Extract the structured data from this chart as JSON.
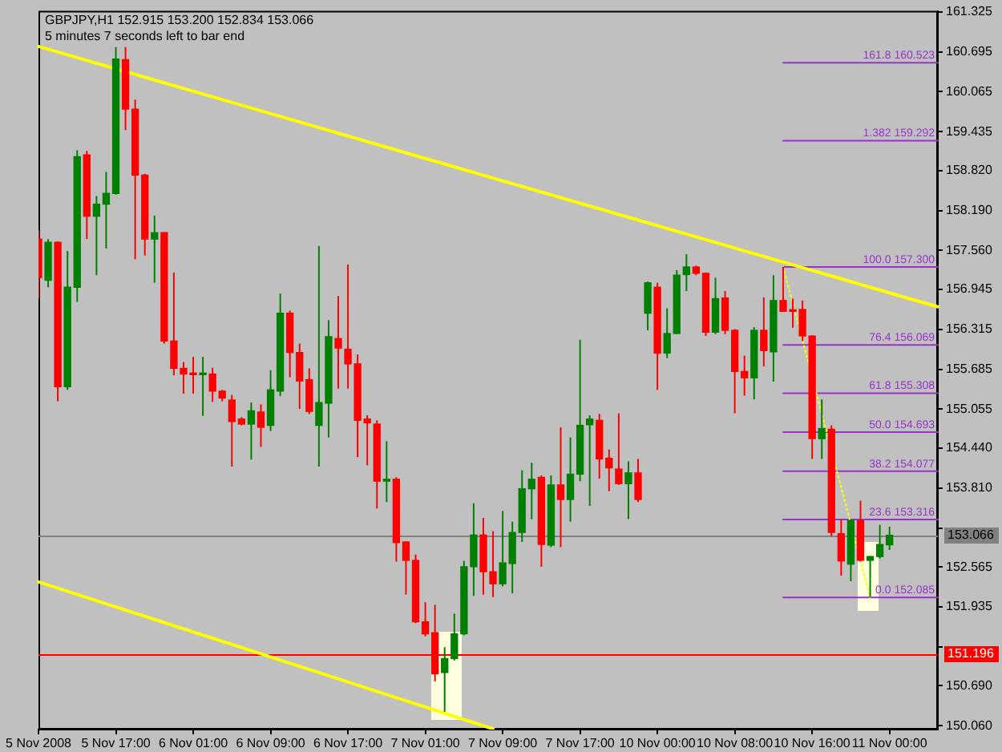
{
  "chart_data": {
    "type": "candlestick",
    "title": "GBPJPY,H1 152.915 153.200 152.834 153.066",
    "subtitle": "5 minutes 7 seconds left to bar end",
    "categories": [
      "5 Nov 2008",
      null,
      null,
      null,
      null,
      null,
      null,
      null,
      "5 Nov 17:00",
      null,
      null,
      null,
      null,
      null,
      null,
      null,
      "6 Nov 01:00",
      null,
      null,
      null,
      null,
      null,
      null,
      null,
      "6 Nov 09:00",
      null,
      null,
      null,
      null,
      null,
      null,
      null,
      "6 Nov 17:00",
      null,
      null,
      null,
      null,
      null,
      null,
      null,
      "7 Nov 01:00",
      null,
      null,
      null,
      null,
      null,
      null,
      null,
      "7 Nov 09:00",
      null,
      null,
      null,
      null,
      null,
      null,
      null,
      "7 Nov 17:00",
      null,
      null,
      null,
      null,
      null,
      null,
      null,
      "10 Nov 00:00",
      null,
      null,
      null,
      null,
      null,
      null,
      null,
      "10 Nov 08:00",
      null,
      null,
      null,
      null,
      null,
      null,
      null,
      "10 Nov 16:00",
      null,
      null,
      null,
      null,
      null,
      null,
      null,
      "11 Nov 00:00",
      null,
      null,
      null,
      null,
      null
    ],
    "ohlc": [
      [
        157.74,
        157.88,
        156.8,
        157.13
      ],
      [
        157.09,
        157.74,
        156.98,
        157.69
      ],
      [
        157.69,
        157.7,
        155.18,
        155.41
      ],
      [
        155.41,
        157.55,
        155.36,
        156.98
      ],
      [
        156.98,
        159.14,
        156.75,
        159.04
      ],
      [
        159.07,
        159.13,
        157.74,
        158.1
      ],
      [
        158.1,
        158.42,
        157.17,
        158.29
      ],
      [
        158.29,
        158.8,
        157.59,
        158.46
      ],
      [
        158.46,
        160.77,
        158.44,
        160.58
      ],
      [
        160.57,
        160.77,
        159.46,
        159.79
      ],
      [
        159.79,
        159.94,
        157.42,
        158.75
      ],
      [
        158.75,
        158.77,
        157.48,
        157.74
      ],
      [
        157.74,
        158.11,
        157.05,
        157.84
      ],
      [
        157.84,
        157.85,
        156.09,
        156.13
      ],
      [
        156.13,
        157.21,
        155.59,
        155.7
      ],
      [
        155.7,
        155.8,
        155.3,
        155.61
      ],
      [
        155.61,
        155.88,
        155.3,
        155.6
      ],
      [
        155.6,
        155.88,
        154.95,
        155.61
      ],
      [
        155.61,
        155.71,
        155.17,
        155.34
      ],
      [
        155.34,
        155.36,
        155.18,
        155.23
      ],
      [
        155.2,
        155.28,
        154.15,
        154.86
      ],
      [
        154.9,
        154.93,
        154.8,
        154.82
      ],
      [
        154.82,
        155.16,
        154.26,
        155.03
      ],
      [
        155.01,
        155.13,
        154.46,
        154.77
      ],
      [
        154.8,
        155.67,
        154.71,
        155.36
      ],
      [
        155.34,
        156.88,
        155.26,
        156.57
      ],
      [
        156.57,
        156.61,
        155.56,
        155.95
      ],
      [
        155.95,
        156.09,
        155.06,
        155.5
      ],
      [
        155.52,
        155.7,
        154.98,
        155.02
      ],
      [
        154.8,
        157.63,
        154.15,
        155.16
      ],
      [
        155.15,
        156.46,
        154.61,
        156.2
      ],
      [
        156.17,
        156.84,
        155.38,
        156.02
      ],
      [
        156.0,
        157.34,
        155.38,
        155.77
      ],
      [
        155.77,
        155.92,
        154.3,
        154.88
      ],
      [
        154.9,
        154.96,
        154.17,
        154.84
      ],
      [
        154.82,
        154.88,
        153.49,
        153.92
      ],
      [
        153.92,
        154.55,
        153.59,
        153.95
      ],
      [
        153.95,
        153.98,
        152.65,
        152.95
      ],
      [
        152.96,
        152.97,
        152.13,
        152.67
      ],
      [
        152.67,
        152.76,
        151.68,
        151.7
      ],
      [
        151.7,
        152.01,
        151.47,
        151.51
      ],
      [
        151.53,
        151.97,
        150.76,
        150.88
      ],
      [
        150.9,
        151.3,
        150.28,
        151.12
      ],
      [
        151.12,
        151.83,
        151.09,
        151.51
      ],
      [
        151.51,
        152.66,
        151.49,
        152.57
      ],
      [
        152.57,
        153.57,
        152.11,
        153.07
      ],
      [
        153.07,
        153.34,
        152.13,
        152.49
      ],
      [
        152.49,
        153.13,
        152.09,
        152.3
      ],
      [
        152.3,
        153.45,
        152.26,
        152.63
      ],
      [
        152.62,
        153.28,
        152.15,
        153.11
      ],
      [
        153.11,
        154.09,
        152.96,
        153.8
      ],
      [
        153.8,
        154.21,
        153.32,
        153.95
      ],
      [
        153.98,
        154.01,
        152.57,
        152.92
      ],
      [
        152.91,
        154.01,
        152.88,
        153.86
      ],
      [
        153.86,
        154.77,
        152.88,
        153.63
      ],
      [
        153.63,
        154.61,
        153.28,
        154.03
      ],
      [
        154.03,
        156.15,
        153.92,
        154.8
      ],
      [
        154.81,
        154.96,
        153.53,
        154.9
      ],
      [
        154.88,
        154.98,
        153.96,
        154.27
      ],
      [
        154.28,
        154.42,
        153.76,
        154.13
      ],
      [
        154.11,
        154.99,
        153.86,
        153.88
      ],
      [
        153.88,
        154.23,
        153.32,
        154.05
      ],
      [
        154.05,
        154.27,
        153.59,
        153.63
      ],
      [
        156.57,
        157.07,
        156.3,
        157.05
      ],
      [
        156.98,
        157.05,
        155.36,
        155.94
      ],
      [
        155.94,
        156.65,
        155.86,
        156.25
      ],
      [
        156.25,
        157.25,
        156.24,
        157.17
      ],
      [
        157.18,
        157.5,
        156.92,
        157.3
      ],
      [
        157.3,
        157.32,
        157.17,
        157.2
      ],
      [
        157.2,
        157.21,
        156.21,
        156.27
      ],
      [
        156.27,
        157.13,
        156.24,
        156.8
      ],
      [
        156.81,
        156.92,
        156.24,
        156.3
      ],
      [
        156.3,
        156.32,
        154.99,
        155.65
      ],
      [
        155.65,
        155.9,
        155.27,
        155.55
      ],
      [
        155.55,
        156.35,
        155.21,
        156.3
      ],
      [
        156.3,
        156.82,
        155.73,
        155.98
      ],
      [
        155.96,
        157.17,
        155.49,
        156.77
      ],
      [
        156.77,
        157.3,
        156.59,
        156.6
      ],
      [
        156.61,
        156.8,
        156.34,
        156.6
      ],
      [
        156.63,
        156.77,
        156.13,
        156.21
      ],
      [
        156.21,
        156.22,
        154.27,
        154.59
      ],
      [
        154.59,
        155.21,
        154.27,
        154.75
      ],
      [
        154.74,
        154.8,
        153.05,
        153.11
      ],
      [
        153.09,
        153.31,
        152.43,
        152.66
      ],
      [
        152.61,
        153.31,
        152.34,
        153.3
      ],
      [
        153.3,
        153.61,
        152.65,
        152.67
      ],
      [
        152.67,
        152.74,
        152.085,
        152.73
      ],
      [
        152.73,
        153.23,
        152.7,
        152.92
      ],
      [
        152.915,
        153.2,
        152.834,
        153.066
      ],
      null,
      null,
      null,
      null,
      null
    ],
    "colors": [
      "#ff0000",
      "#008000",
      "#ff0000",
      "#008000",
      "#008000",
      "#ff0000",
      "#008000",
      "#008000",
      "#008000",
      "#ff0000",
      "#ff0000",
      "#ff0000",
      "#008000",
      "#ff0000",
      "#ff0000",
      "#ff0000",
      "#ff0000",
      "#008000",
      "#ff0000",
      "#ff0000",
      "#ff0000",
      "#ff0000",
      "#008000",
      "#ff0000",
      "#008000",
      "#008000",
      "#ff0000",
      "#ff0000",
      "#ff0000",
      "#008000",
      "#008000",
      "#ff0000",
      "#ff0000",
      "#ff0000",
      "#ff0000",
      "#ff0000",
      "#008000",
      "#ff0000",
      "#ff0000",
      "#ff0000",
      "#ff0000",
      "#ff0000",
      "#008000",
      "#008000",
      "#008000",
      "#008000",
      "#ff0000",
      "#ff0000",
      "#008000",
      "#008000",
      "#008000",
      "#008000",
      "#ff0000",
      "#008000",
      "#ff0000",
      "#008000",
      "#008000",
      "#008000",
      "#ff0000",
      "#ff0000",
      "#ff0000",
      "#008000",
      "#ff0000",
      "#008000",
      "#ff0000",
      "#008000",
      "#008000",
      "#008000",
      "#ff0000",
      "#ff0000",
      "#008000",
      "#ff0000",
      "#ff0000",
      "#ff0000",
      "#008000",
      "#ff0000",
      "#008000",
      "#ff0000",
      "#ff0000",
      "#ff0000",
      "#ff0000",
      "#008000",
      "#ff0000",
      "#ff0000",
      "#008000",
      "#ff0000",
      "#008000",
      "#008000",
      "#008000",
      null,
      null,
      null,
      null,
      null
    ],
    "series": [
      {
        "type": "line",
        "color": "#ffff00",
        "values": [
          160.78,
          null,
          null,
          null,
          null,
          null,
          null,
          null,
          null,
          null,
          null,
          null,
          null,
          null,
          null,
          null,
          null,
          null,
          null,
          null,
          null,
          null,
          null,
          null,
          null,
          null,
          null,
          null,
          null,
          null,
          null,
          null,
          null,
          null,
          null,
          null,
          null,
          null,
          null,
          null,
          null,
          null,
          null,
          null,
          null,
          null,
          null,
          null,
          null,
          null,
          null,
          null,
          null,
          null,
          null,
          null,
          null,
          null,
          null,
          null,
          null,
          null,
          null,
          null,
          null,
          null,
          null,
          null,
          null,
          null,
          null,
          null,
          null,
          null,
          null,
          null,
          null,
          null,
          null,
          null,
          null,
          null,
          null,
          null,
          null,
          null,
          null,
          null,
          null,
          null,
          null,
          null,
          null,
          156.67
        ]
      },
      {
        "type": "line",
        "color": "#ffff00",
        "values": [
          152.33,
          null,
          null,
          null,
          null,
          null,
          null,
          null,
          null,
          null,
          null,
          null,
          null,
          null,
          null,
          null,
          null,
          null,
          null,
          null,
          null,
          null,
          null,
          null,
          null,
          null,
          null,
          null,
          null,
          null,
          null,
          null,
          null,
          null,
          null,
          null,
          null,
          null,
          null,
          null,
          null,
          null,
          null,
          null,
          null,
          null,
          null,
          150.01,
          null,
          null,
          null,
          null,
          null,
          null,
          null,
          null,
          null,
          null,
          null,
          null,
          null,
          null,
          null,
          null,
          null,
          null,
          null,
          null,
          null,
          null,
          null,
          null,
          null,
          null,
          null,
          null,
          null,
          null,
          null,
          null,
          null,
          null,
          null,
          null,
          null,
          null,
          null,
          null,
          null,
          null,
          null,
          null,
          null,
          null
        ]
      },
      {
        "type": "line",
        "color": "#ffff00",
        "line_style": "dotted",
        "values": [
          null,
          null,
          null,
          null,
          null,
          null,
          null,
          null,
          null,
          null,
          null,
          null,
          null,
          null,
          null,
          null,
          null,
          null,
          null,
          null,
          null,
          null,
          null,
          null,
          null,
          null,
          null,
          null,
          null,
          null,
          null,
          null,
          null,
          null,
          null,
          null,
          null,
          null,
          null,
          null,
          null,
          null,
          null,
          null,
          null,
          null,
          null,
          null,
          null,
          null,
          null,
          null,
          null,
          null,
          null,
          null,
          null,
          null,
          null,
          null,
          null,
          null,
          null,
          null,
          null,
          null,
          null,
          null,
          null,
          null,
          null,
          null,
          null,
          null,
          null,
          null,
          null,
          157.3,
          null,
          null,
          null,
          null,
          null,
          null,
          null,
          null,
          152.085,
          null,
          null,
          null,
          null,
          null,
          null,
          null
        ]
      },
      {
        "type": "line",
        "name": "161.8 160.523",
        "color": "#9932cc",
        "values": [
          null,
          null,
          null,
          null,
          null,
          null,
          null,
          null,
          null,
          null,
          null,
          null,
          null,
          null,
          null,
          null,
          null,
          null,
          null,
          null,
          null,
          null,
          null,
          null,
          null,
          null,
          null,
          null,
          null,
          null,
          null,
          null,
          null,
          null,
          null,
          null,
          null,
          null,
          null,
          null,
          null,
          null,
          null,
          null,
          null,
          null,
          null,
          null,
          null,
          null,
          null,
          null,
          null,
          null,
          null,
          null,
          null,
          null,
          null,
          null,
          null,
          null,
          null,
          null,
          null,
          null,
          null,
          null,
          null,
          null,
          null,
          null,
          null,
          null,
          null,
          null,
          null,
          160.523,
          null,
          null,
          null,
          null,
          null,
          null,
          null,
          null,
          null,
          null,
          null,
          null,
          null,
          null,
          null,
          160.523
        ]
      },
      {
        "type": "line",
        "name": "1.382 159.292",
        "color": "#9932cc",
        "values": [
          null,
          null,
          null,
          null,
          null,
          null,
          null,
          null,
          null,
          null,
          null,
          null,
          null,
          null,
          null,
          null,
          null,
          null,
          null,
          null,
          null,
          null,
          null,
          null,
          null,
          null,
          null,
          null,
          null,
          null,
          null,
          null,
          null,
          null,
          null,
          null,
          null,
          null,
          null,
          null,
          null,
          null,
          null,
          null,
          null,
          null,
          null,
          null,
          null,
          null,
          null,
          null,
          null,
          null,
          null,
          null,
          null,
          null,
          null,
          null,
          null,
          null,
          null,
          null,
          null,
          null,
          null,
          null,
          null,
          null,
          null,
          null,
          null,
          null,
          null,
          null,
          null,
          159.292,
          null,
          null,
          null,
          null,
          null,
          null,
          null,
          null,
          null,
          null,
          null,
          null,
          null,
          null,
          null,
          159.292
        ]
      },
      {
        "type": "line",
        "name": "100.0 157.300",
        "color": "#9932cc",
        "values": [
          null,
          null,
          null,
          null,
          null,
          null,
          null,
          null,
          null,
          null,
          null,
          null,
          null,
          null,
          null,
          null,
          null,
          null,
          null,
          null,
          null,
          null,
          null,
          null,
          null,
          null,
          null,
          null,
          null,
          null,
          null,
          null,
          null,
          null,
          null,
          null,
          null,
          null,
          null,
          null,
          null,
          null,
          null,
          null,
          null,
          null,
          null,
          null,
          null,
          null,
          null,
          null,
          null,
          null,
          null,
          null,
          null,
          null,
          null,
          null,
          null,
          null,
          null,
          null,
          null,
          null,
          null,
          null,
          null,
          null,
          null,
          null,
          null,
          null,
          null,
          null,
          null,
          157.3,
          null,
          null,
          null,
          null,
          null,
          null,
          null,
          null,
          null,
          null,
          null,
          null,
          null,
          null,
          null,
          157.3
        ]
      },
      {
        "type": "line",
        "name": "76.4 156.069",
        "color": "#9932cc",
        "values": [
          null,
          null,
          null,
          null,
          null,
          null,
          null,
          null,
          null,
          null,
          null,
          null,
          null,
          null,
          null,
          null,
          null,
          null,
          null,
          null,
          null,
          null,
          null,
          null,
          null,
          null,
          null,
          null,
          null,
          null,
          null,
          null,
          null,
          null,
          null,
          null,
          null,
          null,
          null,
          null,
          null,
          null,
          null,
          null,
          null,
          null,
          null,
          null,
          null,
          null,
          null,
          null,
          null,
          null,
          null,
          null,
          null,
          null,
          null,
          null,
          null,
          null,
          null,
          null,
          null,
          null,
          null,
          null,
          null,
          null,
          null,
          null,
          null,
          null,
          null,
          null,
          null,
          156.069,
          null,
          null,
          null,
          null,
          null,
          null,
          null,
          null,
          null,
          null,
          null,
          null,
          null,
          null,
          null,
          156.069
        ]
      },
      {
        "type": "line",
        "name": "61.8 155.308",
        "color": "#9932cc",
        "values": [
          null,
          null,
          null,
          null,
          null,
          null,
          null,
          null,
          null,
          null,
          null,
          null,
          null,
          null,
          null,
          null,
          null,
          null,
          null,
          null,
          null,
          null,
          null,
          null,
          null,
          null,
          null,
          null,
          null,
          null,
          null,
          null,
          null,
          null,
          null,
          null,
          null,
          null,
          null,
          null,
          null,
          null,
          null,
          null,
          null,
          null,
          null,
          null,
          null,
          null,
          null,
          null,
          null,
          null,
          null,
          null,
          null,
          null,
          null,
          null,
          null,
          null,
          null,
          null,
          null,
          null,
          null,
          null,
          null,
          null,
          null,
          null,
          null,
          null,
          null,
          null,
          null,
          155.308,
          null,
          null,
          null,
          null,
          null,
          null,
          null,
          null,
          null,
          null,
          null,
          null,
          null,
          null,
          null,
          155.308
        ]
      },
      {
        "type": "line",
        "name": "50.0 154.693",
        "color": "#9932cc",
        "values": [
          null,
          null,
          null,
          null,
          null,
          null,
          null,
          null,
          null,
          null,
          null,
          null,
          null,
          null,
          null,
          null,
          null,
          null,
          null,
          null,
          null,
          null,
          null,
          null,
          null,
          null,
          null,
          null,
          null,
          null,
          null,
          null,
          null,
          null,
          null,
          null,
          null,
          null,
          null,
          null,
          null,
          null,
          null,
          null,
          null,
          null,
          null,
          null,
          null,
          null,
          null,
          null,
          null,
          null,
          null,
          null,
          null,
          null,
          null,
          null,
          null,
          null,
          null,
          null,
          null,
          null,
          null,
          null,
          null,
          null,
          null,
          null,
          null,
          null,
          null,
          null,
          null,
          154.693,
          null,
          null,
          null,
          null,
          null,
          null,
          null,
          null,
          null,
          null,
          null,
          null,
          null,
          null,
          null,
          154.693
        ]
      },
      {
        "type": "line",
        "name": "38.2 154.077",
        "color": "#9932cc",
        "values": [
          null,
          null,
          null,
          null,
          null,
          null,
          null,
          null,
          null,
          null,
          null,
          null,
          null,
          null,
          null,
          null,
          null,
          null,
          null,
          null,
          null,
          null,
          null,
          null,
          null,
          null,
          null,
          null,
          null,
          null,
          null,
          null,
          null,
          null,
          null,
          null,
          null,
          null,
          null,
          null,
          null,
          null,
          null,
          null,
          null,
          null,
          null,
          null,
          null,
          null,
          null,
          null,
          null,
          null,
          null,
          null,
          null,
          null,
          null,
          null,
          null,
          null,
          null,
          null,
          null,
          null,
          null,
          null,
          null,
          null,
          null,
          null,
          null,
          null,
          null,
          null,
          null,
          154.077,
          null,
          null,
          null,
          null,
          null,
          null,
          null,
          null,
          null,
          null,
          null,
          null,
          null,
          null,
          null,
          154.077
        ]
      },
      {
        "type": "line",
        "name": "23.6 153.316",
        "color": "#9932cc",
        "values": [
          null,
          null,
          null,
          null,
          null,
          null,
          null,
          null,
          null,
          null,
          null,
          null,
          null,
          null,
          null,
          null,
          null,
          null,
          null,
          null,
          null,
          null,
          null,
          null,
          null,
          null,
          null,
          null,
          null,
          null,
          null,
          null,
          null,
          null,
          null,
          null,
          null,
          null,
          null,
          null,
          null,
          null,
          null,
          null,
          null,
          null,
          null,
          null,
          null,
          null,
          null,
          null,
          null,
          null,
          null,
          null,
          null,
          null,
          null,
          null,
          null,
          null,
          null,
          null,
          null,
          null,
          null,
          null,
          null,
          null,
          null,
          null,
          null,
          null,
          null,
          null,
          null,
          153.316,
          null,
          null,
          null,
          null,
          null,
          null,
          null,
          null,
          null,
          null,
          null,
          null,
          null,
          null,
          null,
          153.316
        ]
      },
      {
        "type": "line",
        "name": "0.0 152.085",
        "color": "#9932cc",
        "values": [
          null,
          null,
          null,
          null,
          null,
          null,
          null,
          null,
          null,
          null,
          null,
          null,
          null,
          null,
          null,
          null,
          null,
          null,
          null,
          null,
          null,
          null,
          null,
          null,
          null,
          null,
          null,
          null,
          null,
          null,
          null,
          null,
          null,
          null,
          null,
          null,
          null,
          null,
          null,
          null,
          null,
          null,
          null,
          null,
          null,
          null,
          null,
          null,
          null,
          null,
          null,
          null,
          null,
          null,
          null,
          null,
          null,
          null,
          null,
          null,
          null,
          null,
          null,
          null,
          null,
          null,
          null,
          null,
          null,
          null,
          null,
          null,
          null,
          null,
          null,
          null,
          null,
          152.085,
          null,
          null,
          null,
          null,
          null,
          null,
          null,
          null,
          null,
          null,
          null,
          null,
          null,
          null,
          null,
          152.085
        ]
      }
    ],
    "ref_lines": [
      {
        "axis": "y",
        "value": 153.066,
        "label": "153.066",
        "color": "#808080"
      },
      {
        "axis": "y",
        "value": 151.196,
        "label": "151.196",
        "color": "#ff0000"
      }
    ],
    "ylim": [
      150.0,
      161.34
    ],
    "yticks": [
      {
        "value": 150.06,
        "label": "150.060"
      },
      {
        "value": 150.69,
        "label": "150.690"
      },
      {
        "value": 151.305,
        "label": null
      },
      151.935,
      152.565,
      {
        "value": 153.18,
        "label": null
      },
      {
        "value": 153.81,
        "label": "153.810"
      },
      {
        "value": 154.44,
        "label": "154.440"
      },
      155.055,
      155.685,
      156.315,
      156.945,
      {
        "value": 157.56,
        "label": "157.560"
      },
      {
        "value": 158.19,
        "label": "158.190"
      },
      {
        "value": 158.82,
        "label": "158.820"
      },
      159.435,
      160.065,
      160.695,
      161.325
    ]
  }
}
